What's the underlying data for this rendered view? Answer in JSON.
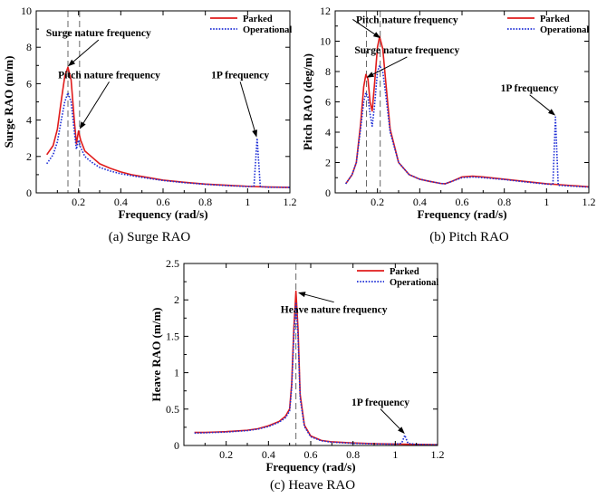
{
  "colors": {
    "parked": "#e01b1b",
    "operational": "#1f2fd6",
    "axis": "#000000",
    "vline": "#666666"
  },
  "chart_data": [
    {
      "type": "line",
      "caption": "(a) Surge RAO",
      "xlabel": "Frequency (rad/s)",
      "ylabel": "Surge RAO (m/m)",
      "xlim": [
        0,
        1.2
      ],
      "ylim": [
        0,
        10
      ],
      "xticks": [
        0.2,
        0.4,
        0.6,
        0.8,
        1,
        1.2
      ],
      "xtick_labels": [
        "0.2",
        "0.4",
        "0.6",
        "0.8",
        "1",
        "1.2"
      ],
      "yticks": [
        0,
        2,
        4,
        6,
        8,
        10
      ],
      "ytick_labels": [
        "0",
        "2",
        "4",
        "6",
        "8",
        "10"
      ],
      "legend": "top-right",
      "series": [
        {
          "name": "Parked",
          "style": "solid",
          "x": [
            0.05,
            0.08,
            0.1,
            0.12,
            0.135,
            0.15,
            0.165,
            0.18,
            0.19,
            0.2,
            0.21,
            0.23,
            0.26,
            0.3,
            0.35,
            0.4,
            0.45,
            0.5,
            0.6,
            0.7,
            0.8,
            0.9,
            1.0,
            1.1,
            1.2
          ],
          "y": [
            2.1,
            2.6,
            3.5,
            5.2,
            6.4,
            6.9,
            6.2,
            4.0,
            2.7,
            3.4,
            2.9,
            2.3,
            2.0,
            1.6,
            1.35,
            1.15,
            1.0,
            0.9,
            0.7,
            0.58,
            0.48,
            0.42,
            0.36,
            0.32,
            0.3
          ]
        },
        {
          "name": "Operational",
          "style": "dotted",
          "x": [
            0.05,
            0.08,
            0.1,
            0.12,
            0.135,
            0.15,
            0.165,
            0.18,
            0.19,
            0.2,
            0.21,
            0.23,
            0.26,
            0.3,
            0.35,
            0.4,
            0.45,
            0.5,
            0.6,
            0.7,
            0.8,
            0.9,
            1.0,
            1.03,
            1.045,
            1.06,
            1.1,
            1.2
          ],
          "y": [
            1.6,
            2.1,
            2.8,
            4.1,
            5.0,
            5.5,
            5.0,
            3.4,
            2.4,
            2.9,
            2.5,
            2.0,
            1.7,
            1.4,
            1.2,
            1.05,
            0.95,
            0.85,
            0.68,
            0.56,
            0.47,
            0.4,
            0.35,
            0.36,
            3.0,
            0.34,
            0.31,
            0.3
          ]
        }
      ],
      "vlines": [
        0.15,
        0.205
      ],
      "annotations": [
        {
          "text": "Surge nature frequency",
          "tx": 0.295,
          "ty": 8.6,
          "ax": 0.15,
          "ay": 6.95
        },
        {
          "text": "Pitch nature frequency",
          "tx": 0.345,
          "ty": 6.3,
          "ax": 0.205,
          "ay": 3.5
        },
        {
          "text": "1P frequency",
          "tx": 0.965,
          "ty": 6.3,
          "ax": 1.043,
          "ay": 3.05
        }
      ]
    },
    {
      "type": "line",
      "caption": "(b) Pitch RAO",
      "xlabel": "Frequency (rad/s)",
      "ylabel": "Pitch RAO (deg/m)",
      "xlim": [
        0,
        1.2
      ],
      "ylim": [
        0,
        12
      ],
      "xticks": [
        0.2,
        0.4,
        0.6,
        0.8,
        1,
        1.2
      ],
      "xtick_labels": [
        "0.2",
        "0.4",
        "0.6",
        "0.8",
        "1",
        "1.2"
      ],
      "yticks": [
        0,
        2,
        4,
        6,
        8,
        10,
        12
      ],
      "ytick_labels": [
        "0",
        "2",
        "4",
        "6",
        "8",
        "10",
        "12"
      ],
      "legend": "top-right",
      "series": [
        {
          "name": "Parked",
          "style": "solid",
          "x": [
            0.05,
            0.08,
            0.1,
            0.12,
            0.135,
            0.145,
            0.155,
            0.165,
            0.175,
            0.185,
            0.2,
            0.21,
            0.225,
            0.24,
            0.26,
            0.3,
            0.35,
            0.4,
            0.45,
            0.5,
            0.52,
            0.55,
            0.6,
            0.65,
            0.7,
            0.8,
            0.9,
            1.0,
            1.1,
            1.2
          ],
          "y": [
            0.6,
            1.2,
            2.0,
            4.5,
            7.0,
            7.8,
            7.5,
            6.0,
            5.4,
            7.0,
            9.6,
            10.3,
            9.5,
            7.2,
            4.2,
            2.0,
            1.2,
            0.9,
            0.75,
            0.62,
            0.6,
            0.75,
            1.05,
            1.1,
            1.05,
            0.9,
            0.75,
            0.6,
            0.5,
            0.4
          ]
        },
        {
          "name": "Operational",
          "style": "dotted",
          "x": [
            0.05,
            0.08,
            0.1,
            0.12,
            0.135,
            0.145,
            0.155,
            0.165,
            0.175,
            0.185,
            0.2,
            0.21,
            0.225,
            0.24,
            0.26,
            0.3,
            0.35,
            0.4,
            0.45,
            0.5,
            0.52,
            0.55,
            0.6,
            0.65,
            0.7,
            0.8,
            0.9,
            1.0,
            1.03,
            1.042,
            1.055,
            1.1,
            1.2
          ],
          "y": [
            0.6,
            1.2,
            2.0,
            4.2,
            6.0,
            6.6,
            6.3,
            5.2,
            4.4,
            5.6,
            8.0,
            8.4,
            8.0,
            6.4,
            4.0,
            2.0,
            1.2,
            0.9,
            0.75,
            0.62,
            0.6,
            0.75,
            1.0,
            1.05,
            1.0,
            0.88,
            0.72,
            0.58,
            0.55,
            5.0,
            0.5,
            0.46,
            0.38
          ]
        }
      ],
      "vlines": [
        0.148,
        0.213
      ],
      "annotations": [
        {
          "text": "Pitch nature frequency",
          "tx": 0.34,
          "ty": 11.2,
          "ax": 0.215,
          "ay": 10.2
        },
        {
          "text": "Surge nature frequency",
          "tx": 0.34,
          "ty": 9.2,
          "ax": 0.148,
          "ay": 7.6
        },
        {
          "text": "1P frequency",
          "tx": 0.92,
          "ty": 6.7,
          "ax": 1.042,
          "ay": 5.1
        }
      ]
    },
    {
      "type": "line",
      "caption": "(c) Heave RAO",
      "xlabel": "Frequency (rad/s)",
      "ylabel": "Heave RAO (m/m)",
      "xlim": [
        0,
        1.2
      ],
      "ylim": [
        0,
        2.5
      ],
      "xticks": [
        0.2,
        0.4,
        0.6,
        0.8,
        1,
        1.2
      ],
      "xtick_labels": [
        "0.2",
        "0.4",
        "0.6",
        "0.8",
        "1",
        "1.2"
      ],
      "yticks": [
        0,
        0.5,
        1,
        1.5,
        2,
        2.5
      ],
      "ytick_labels": [
        "0",
        "0.5",
        "1",
        "1.5",
        "2",
        "2.5"
      ],
      "legend": "top-right",
      "series": [
        {
          "name": "Parked",
          "style": "solid",
          "x": [
            0.05,
            0.1,
            0.15,
            0.2,
            0.25,
            0.3,
            0.35,
            0.4,
            0.45,
            0.48,
            0.5,
            0.51,
            0.52,
            0.53,
            0.54,
            0.55,
            0.57,
            0.6,
            0.65,
            0.7,
            0.8,
            0.9,
            1.0,
            1.1,
            1.2
          ],
          "y": [
            0.18,
            0.18,
            0.185,
            0.19,
            0.2,
            0.21,
            0.23,
            0.27,
            0.33,
            0.4,
            0.5,
            0.85,
            1.6,
            2.12,
            1.6,
            0.7,
            0.28,
            0.13,
            0.07,
            0.05,
            0.035,
            0.025,
            0.02,
            0.015,
            0.01
          ]
        },
        {
          "name": "Operational",
          "style": "dotted",
          "x": [
            0.05,
            0.1,
            0.15,
            0.2,
            0.25,
            0.3,
            0.35,
            0.4,
            0.45,
            0.48,
            0.5,
            0.51,
            0.52,
            0.53,
            0.54,
            0.55,
            0.57,
            0.6,
            0.65,
            0.7,
            0.8,
            0.9,
            1.0,
            1.03,
            1.045,
            1.06,
            1.1,
            1.2
          ],
          "y": [
            0.17,
            0.175,
            0.18,
            0.185,
            0.195,
            0.205,
            0.225,
            0.26,
            0.32,
            0.38,
            0.47,
            0.8,
            1.5,
            1.95,
            1.5,
            0.65,
            0.26,
            0.12,
            0.065,
            0.045,
            0.03,
            0.022,
            0.018,
            0.03,
            0.14,
            0.03,
            0.014,
            0.01
          ]
        }
      ],
      "vlines": [
        0.53
      ],
      "annotations": [
        {
          "text": "Heave nature frequency",
          "tx": 0.71,
          "ty": 1.82,
          "ax": 0.54,
          "ay": 2.1
        },
        {
          "text": "1P frequency",
          "tx": 0.93,
          "ty": 0.55,
          "ax": 1.045,
          "ay": 0.16
        }
      ]
    }
  ]
}
